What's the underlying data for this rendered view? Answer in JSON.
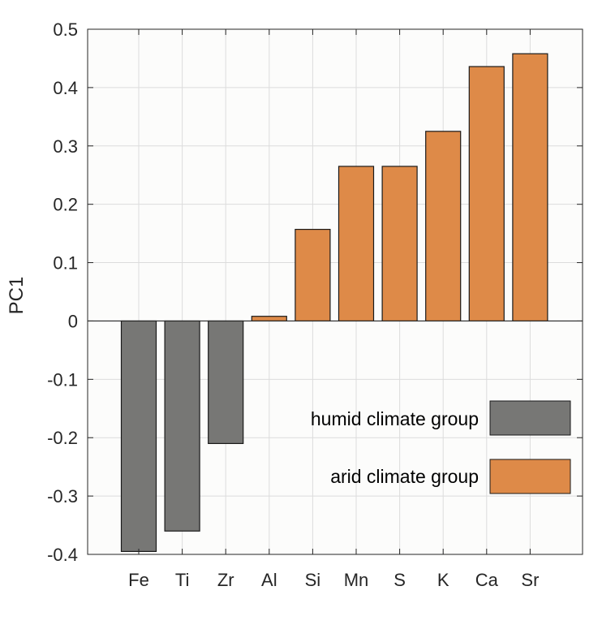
{
  "chart_data": {
    "type": "bar",
    "ylabel": "PC1",
    "xlabel": "",
    "title": "",
    "ylim": [
      -0.4,
      0.5
    ],
    "yticks": [
      -0.4,
      -0.3,
      -0.2,
      -0.1,
      0,
      0.1,
      0.2,
      0.3,
      0.4,
      0.5
    ],
    "ytick_labels": [
      "-0.4",
      "-0.3",
      "-0.2",
      "-0.1",
      "0",
      "0.1",
      "0.2",
      "0.3",
      "0.4",
      "0.5"
    ],
    "categories": [
      "Fe",
      "Ti",
      "Zr",
      "Al",
      "Si",
      "Mn",
      "S",
      "K",
      "Ca",
      "Sr"
    ],
    "values": [
      -0.395,
      -0.36,
      -0.21,
      0.008,
      0.157,
      0.265,
      0.265,
      0.325,
      0.436,
      0.458
    ],
    "grid": true,
    "legend": {
      "placement": "lower-right",
      "entries": [
        {
          "label": "humid climate group",
          "color": "#777775"
        },
        {
          "label": "arid climate group",
          "color": "#de8a48"
        }
      ]
    },
    "colors": {
      "humid": "#777775",
      "arid": "#de8a48",
      "edge": "#1a1a1a",
      "grid": "#dcdcdc",
      "background": "#fcfcfb"
    }
  }
}
